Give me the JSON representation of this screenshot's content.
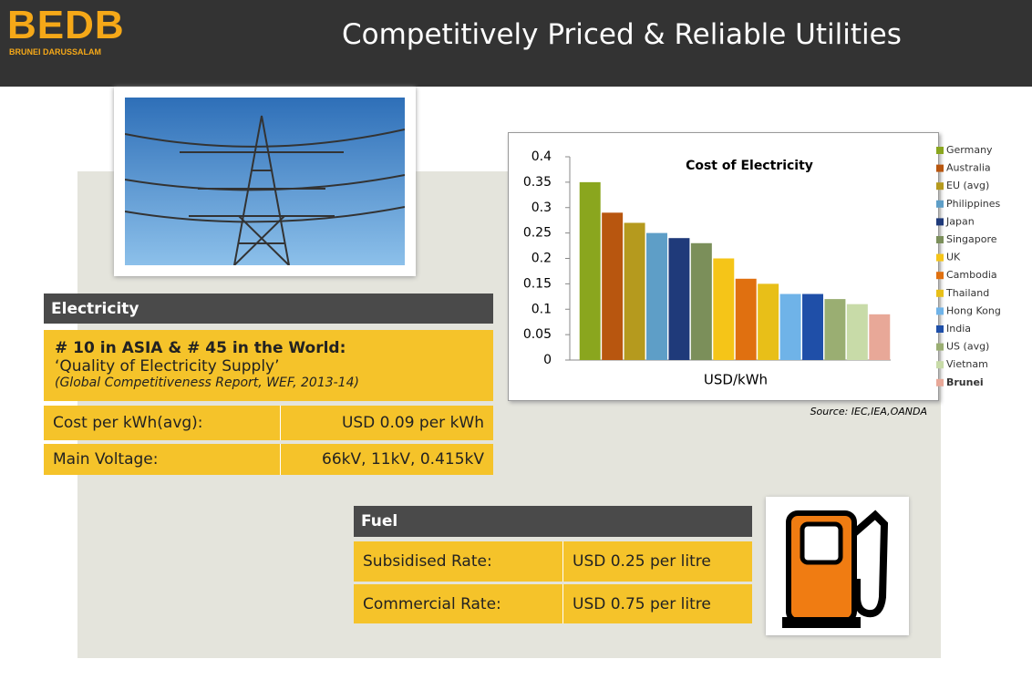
{
  "header": {
    "logo": "BEDB",
    "logo_sub": "BRUNEI DARUSSALAM",
    "title": "Competitively Priced & Reliable Utilities"
  },
  "electricity": {
    "heading": "Electricity",
    "rank": "# 10 in ASIA & # 45 in the World:",
    "subtitle": "‘Quality of Electricity Supply’",
    "source": "(Global Competitiveness Report, WEF, 2013-14)",
    "rows": [
      [
        "Cost per kWh(avg):",
        "USD 0.09 per kWh"
      ],
      [
        "Main Voltage:",
        "66kV, 11kV, 0.415kV"
      ]
    ]
  },
  "fuel": {
    "heading": "Fuel",
    "rows": [
      [
        "Subsidised Rate:",
        "USD 0.25 per litre"
      ],
      [
        "Commercial Rate:",
        "USD 0.75 per litre"
      ]
    ]
  },
  "chart_data": {
    "type": "bar",
    "title": "Cost of Electricity",
    "xlabel": "USD/kWh",
    "source": "Source: IEC,IEA,OANDA",
    "categories": [
      "Germany",
      "Australia",
      "EU (avg)",
      "Philippines",
      "Japan",
      "Singapore",
      "UK",
      "Cambodia",
      "Thailand",
      "Hong Kong",
      "India",
      "US (avg)",
      "Vietnam",
      "Brunei"
    ],
    "values": [
      0.35,
      0.29,
      0.27,
      0.25,
      0.24,
      0.23,
      0.2,
      0.16,
      0.15,
      0.13,
      0.13,
      0.12,
      0.11,
      0.09
    ],
    "colors": [
      "#8aa61e",
      "#b8560f",
      "#b59a1e",
      "#5e9ec7",
      "#1f3a7a",
      "#7b8f5a",
      "#f5c518",
      "#e07010",
      "#e8bf18",
      "#6fb3e8",
      "#1f4fa8",
      "#9aae72",
      "#c8dba8",
      "#e8a898"
    ],
    "ylim": [
      0,
      0.4
    ],
    "yticks": [
      0,
      0.05,
      0.1,
      0.15,
      0.2,
      0.25,
      0.3,
      0.35,
      0.4
    ]
  }
}
